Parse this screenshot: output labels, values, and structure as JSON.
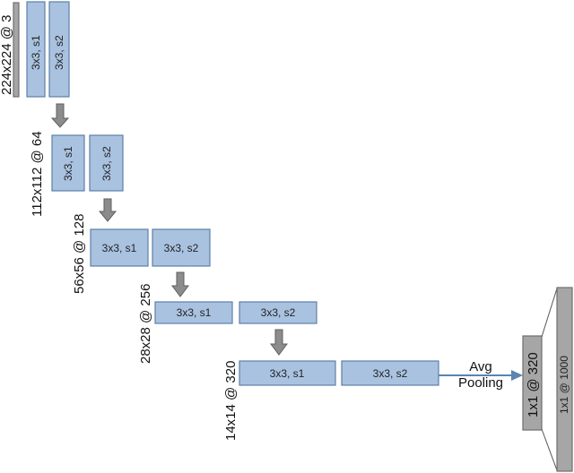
{
  "stages": [
    {
      "label": "224x224 @ 3",
      "blocks": [
        "3x3, s1",
        "3x3, s2"
      ]
    },
    {
      "label": "112x112 @ 64",
      "blocks": [
        "3x3, s1",
        "3x3, s2"
      ]
    },
    {
      "label": "56x56 @ 128",
      "blocks": [
        "3x3, s1",
        "3x3, s2"
      ]
    },
    {
      "label": "28x28 @ 256",
      "blocks": [
        "3x3, s1",
        "3x3, s2"
      ]
    },
    {
      "label": "14x14 @ 320",
      "blocks": [
        "3x3, s1",
        "3x3, s2"
      ]
    }
  ],
  "pooling": {
    "line1": "Avg",
    "line2": "Pooling"
  },
  "pooled_output": "1x1 @ 320",
  "fc_output": "1x1 @ 1000"
}
